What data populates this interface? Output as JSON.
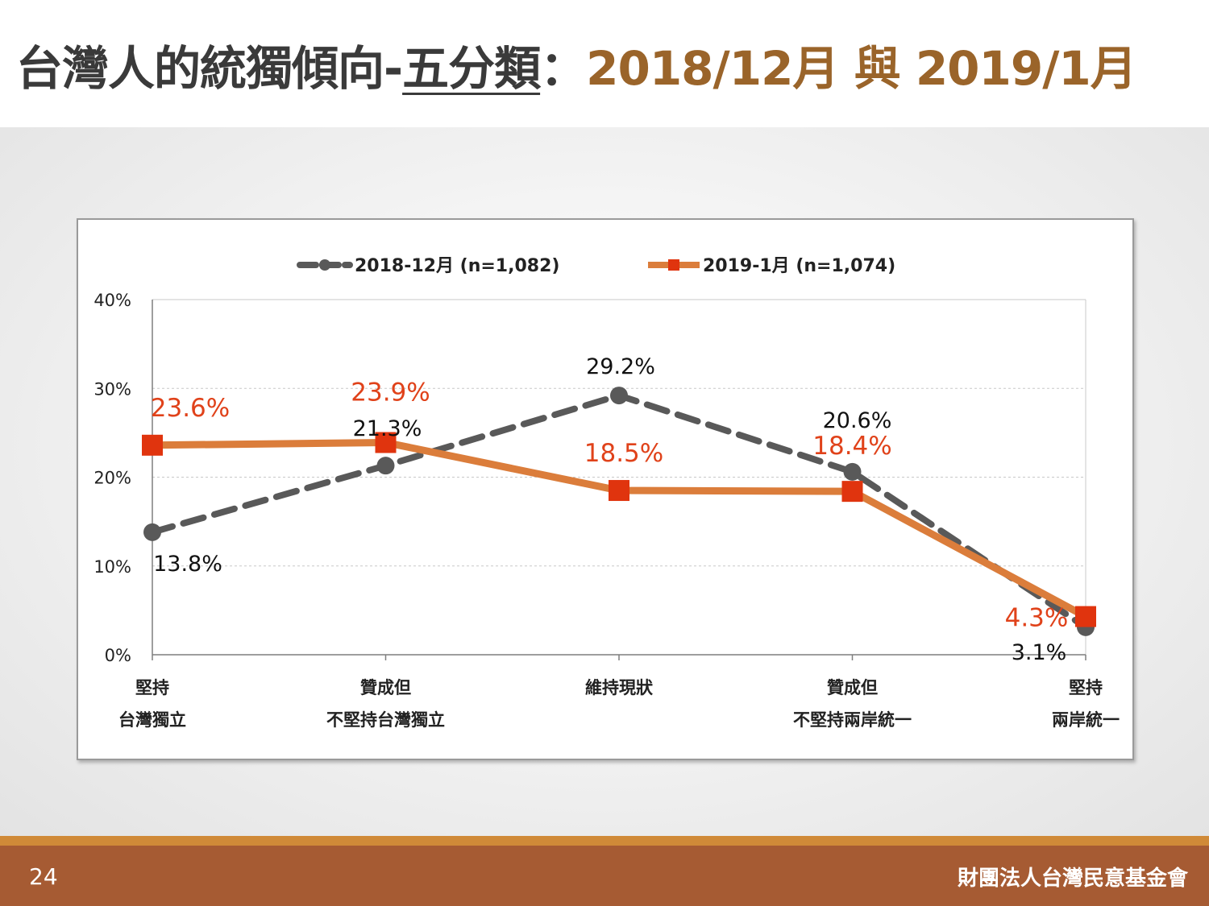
{
  "title": {
    "main": "台灣人的統獨傾向-",
    "underlined": "五分類",
    "separator": "：",
    "date_range": "2018/12月 與 2019/1月"
  },
  "footer": {
    "page_number": "24",
    "organization": "財團法人台灣民意基金會"
  },
  "chart_data": {
    "type": "line",
    "categories": [
      [
        "堅持",
        "台灣獨立"
      ],
      [
        "贊成但",
        "不堅持台灣獨立"
      ],
      [
        "維持現狀"
      ],
      [
        "贊成但",
        "不堅持兩岸統一"
      ],
      [
        "堅持",
        "兩岸統一"
      ]
    ],
    "ylim": [
      0,
      40
    ],
    "yticks": [
      "0%",
      "10%",
      "20%",
      "30%",
      "40%"
    ],
    "grid": true,
    "legend_position": "top",
    "series": [
      {
        "name": "2018-12月 (n=1,082)",
        "values": [
          13.8,
          21.3,
          29.2,
          20.6,
          3.1
        ],
        "labels": [
          "13.8%",
          "21.3%",
          "29.2%",
          "20.6%",
          "3.1%"
        ],
        "color": "#595959",
        "style": "dashed",
        "marker": "circle"
      },
      {
        "name": "2019-1月 (n=1,074)",
        "values": [
          23.6,
          23.9,
          18.5,
          18.4,
          4.3
        ],
        "labels": [
          "23.6%",
          "23.9%",
          "18.5%",
          "18.4%",
          "4.3%"
        ],
        "color": "#db7d3b",
        "label_color": "#e0421a",
        "marker_color": "#e0340e",
        "style": "solid",
        "marker": "square"
      }
    ]
  }
}
